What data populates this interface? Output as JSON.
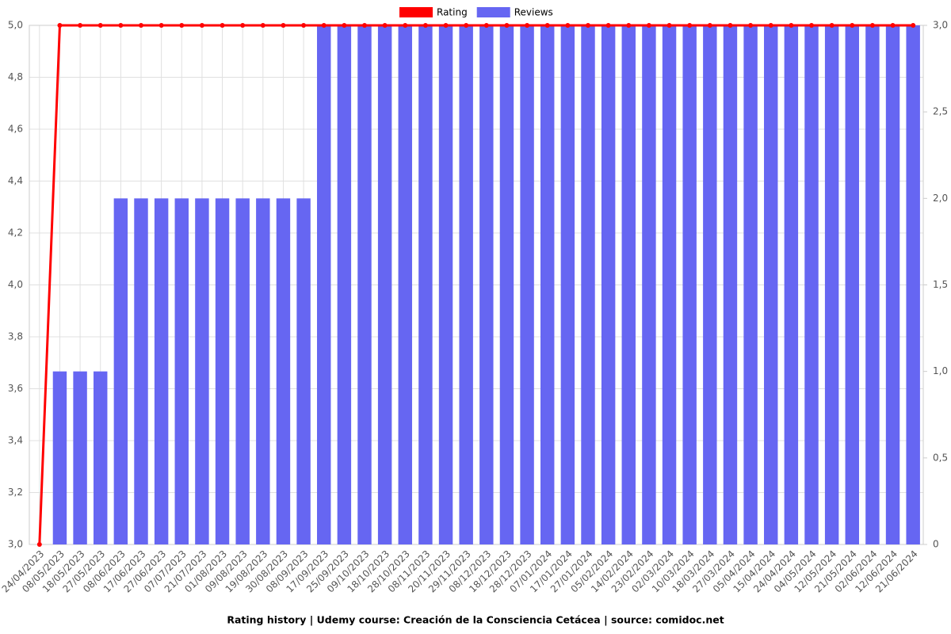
{
  "chart_data": {
    "type": "bar-line",
    "title": "Rating history | Udemy course: Creación de la Consciencia Cetácea | source: comidoc.net",
    "categories": [
      "24/04/2023",
      "08/05/2023",
      "18/05/2023",
      "27/05/2023",
      "08/06/2023",
      "17/06/2023",
      "27/06/2023",
      "07/07/2023",
      "21/07/2023",
      "01/08/2023",
      "09/08/2023",
      "19/08/2023",
      "30/08/2023",
      "08/09/2023",
      "17/09/2023",
      "25/09/2023",
      "09/10/2023",
      "18/10/2023",
      "28/10/2023",
      "08/11/2023",
      "20/11/2023",
      "29/11/2023",
      "08/12/2023",
      "18/12/2023",
      "28/12/2023",
      "07/01/2024",
      "17/01/2024",
      "27/01/2024",
      "05/02/2024",
      "14/02/2024",
      "23/02/2024",
      "02/03/2024",
      "10/03/2024",
      "18/03/2024",
      "27/03/2024",
      "05/04/2024",
      "15/04/2024",
      "24/04/2024",
      "04/05/2024",
      "12/05/2024",
      "21/05/2024",
      "02/06/2024",
      "12/06/2024",
      "21/06/2024"
    ],
    "series": [
      {
        "name": "Rating",
        "color": "#ff0000",
        "kind": "line",
        "axis": "y",
        "values": [
          3,
          5,
          5,
          5,
          5,
          5,
          5,
          5,
          5,
          5,
          5,
          5,
          5,
          5,
          5,
          5,
          5,
          5,
          5,
          5,
          5,
          5,
          5,
          5,
          5,
          5,
          5,
          5,
          5,
          5,
          5,
          5,
          5,
          5,
          5,
          5,
          5,
          5,
          5,
          5,
          5,
          5,
          5,
          5
        ]
      },
      {
        "name": "Reviews",
        "color": "#6666f2",
        "kind": "bar",
        "axis": "y2",
        "values": [
          0,
          1,
          1,
          1,
          2,
          2,
          2,
          2,
          2,
          2,
          2,
          2,
          2,
          2,
          3,
          3,
          3,
          3,
          3,
          3,
          3,
          3,
          3,
          3,
          3,
          3,
          3,
          3,
          3,
          3,
          3,
          3,
          3,
          3,
          3,
          3,
          3,
          3,
          3,
          3,
          3,
          3,
          3,
          3
        ]
      }
    ],
    "ylim": [
      3,
      5
    ],
    "yticks": [
      {
        "value": 3,
        "label": "3,0"
      },
      {
        "value": 3.2,
        "label": "3,2"
      },
      {
        "value": 3.4,
        "label": "3,4"
      },
      {
        "value": 3.6,
        "label": "3,6"
      },
      {
        "value": 3.8,
        "label": "3,8"
      },
      {
        "value": 4,
        "label": "4,0"
      },
      {
        "value": 4.2,
        "label": "4,2"
      },
      {
        "value": 4.4,
        "label": "4,4"
      },
      {
        "value": 4.6,
        "label": "4,6"
      },
      {
        "value": 4.8,
        "label": "4,8"
      },
      {
        "value": 5,
        "label": "5,0"
      }
    ],
    "y2lim": [
      0,
      3
    ],
    "y2ticks": [
      0,
      {
        "value": 0.5,
        "label": "0,5"
      },
      {
        "value": 1,
        "label": "1,0"
      },
      {
        "value": 1.5,
        "label": "1,5"
      },
      {
        "value": 2,
        "label": "2,0"
      },
      {
        "value": 2.5,
        "label": "2,5"
      },
      {
        "value": 3,
        "label": "3,0"
      }
    ],
    "grid": true,
    "legend": "top"
  }
}
